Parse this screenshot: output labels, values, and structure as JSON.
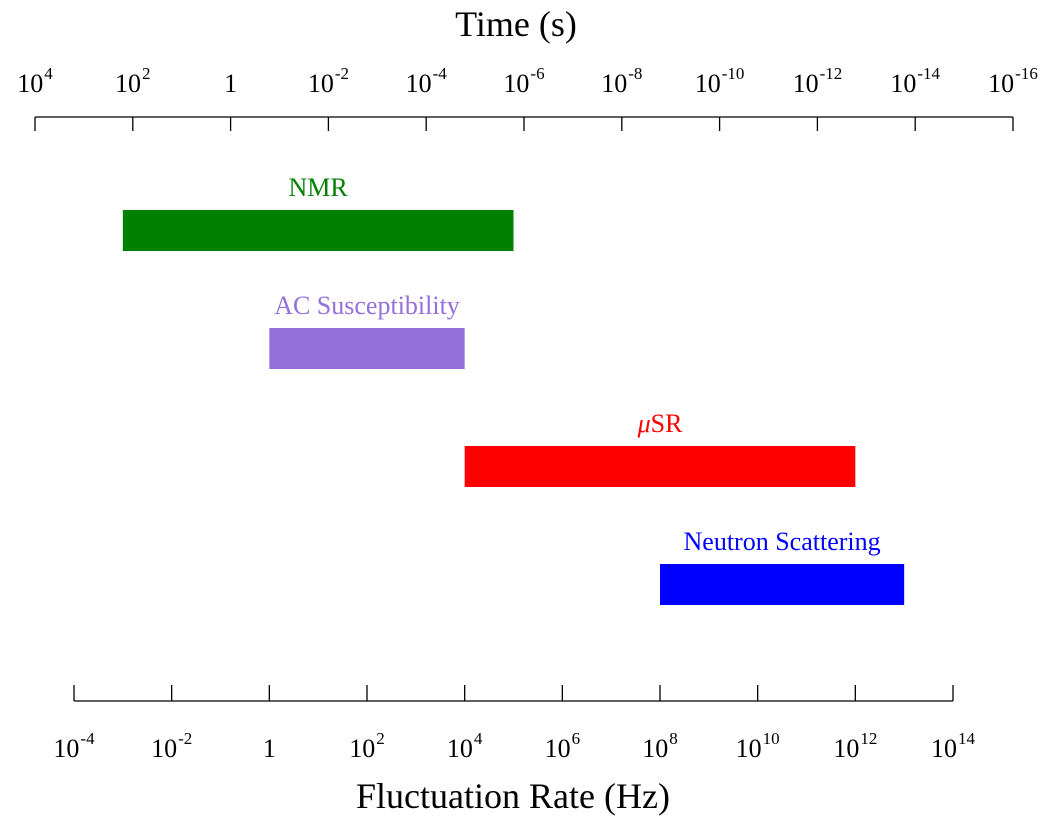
{
  "chart_data": {
    "type": "bar",
    "orientation": "horizontal-range",
    "top_axis": {
      "label": "Time (s)",
      "scale": "log",
      "direction": "decreasing",
      "range": [
        10000,
        1e-16
      ],
      "ticks": [
        {
          "base": "10",
          "exp": "4"
        },
        {
          "base": "10",
          "exp": "2"
        },
        {
          "base": "1",
          "exp": ""
        },
        {
          "base": "10",
          "exp": "-2"
        },
        {
          "base": "10",
          "exp": "-4"
        },
        {
          "base": "10",
          "exp": "-6"
        },
        {
          "base": "10",
          "exp": "-8"
        },
        {
          "base": "10",
          "exp": "-10"
        },
        {
          "base": "10",
          "exp": "-12"
        },
        {
          "base": "10",
          "exp": "-14"
        },
        {
          "base": "10",
          "exp": "-16"
        }
      ]
    },
    "bottom_axis": {
      "label": "Fluctuation Rate (Hz)",
      "scale": "log",
      "range": [
        0.0001,
        100000000000000.0
      ],
      "ticks": [
        {
          "base": "10",
          "exp": "-4"
        },
        {
          "base": "10",
          "exp": "-2"
        },
        {
          "base": "1",
          "exp": ""
        },
        {
          "base": "10",
          "exp": "2"
        },
        {
          "base": "10",
          "exp": "4"
        },
        {
          "base": "10",
          "exp": "6"
        },
        {
          "base": "10",
          "exp": "8"
        },
        {
          "base": "10",
          "exp": "10"
        },
        {
          "base": "10",
          "exp": "12"
        },
        {
          "base": "10",
          "exp": "14"
        }
      ]
    },
    "series": [
      {
        "name": "NMR",
        "prefix": "",
        "range_hz": [
          0.001,
          100000
        ],
        "color": "#008000"
      },
      {
        "name": "AC Susceptibility",
        "prefix": "",
        "range_hz": [
          1,
          10000
        ],
        "color": "#9370db"
      },
      {
        "name": "SR",
        "prefix": "μ",
        "range_hz": [
          10000,
          1000000000000.0
        ],
        "color": "#ff0000"
      },
      {
        "name": "Neutron Scattering",
        "prefix": "",
        "range_hz": [
          100000000.0,
          10000000000000.0
        ],
        "color": "#0000ff"
      }
    ],
    "grid": false
  }
}
